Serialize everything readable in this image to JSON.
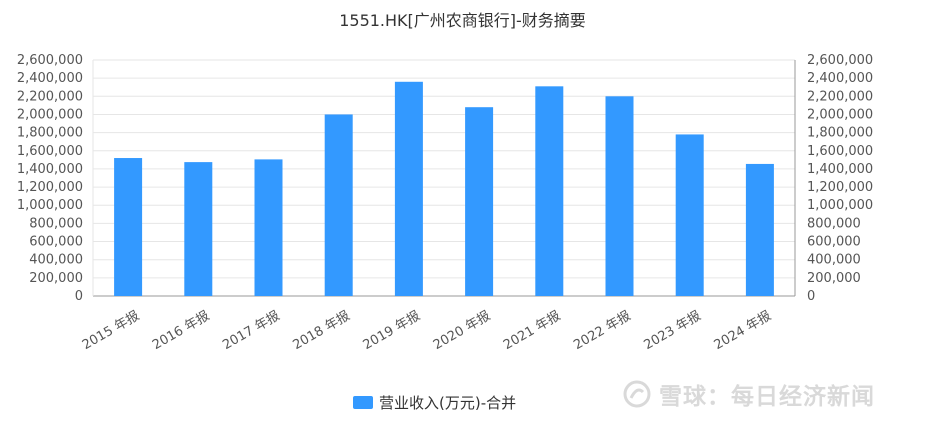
{
  "chart_data": {
    "type": "bar",
    "title": "1551.HK[广州农商银行]-财务摘要",
    "categories": [
      "2015 年报",
      "2016 年报",
      "2017 年报",
      "2018 年报",
      "2019 年报",
      "2020 年报",
      "2021 年报",
      "2022 年报",
      "2023 年报",
      "2024 年报"
    ],
    "series": [
      {
        "name": "营业收入(万元)-合并",
        "values": [
          1520000,
          1475000,
          1505000,
          2000000,
          2360000,
          2080000,
          2310000,
          2200000,
          1780000,
          1455000
        ]
      }
    ],
    "yticks": [
      "0",
      "200,000",
      "400,000",
      "600,000",
      "800,000",
      "1,000,000",
      "1,200,000",
      "1,400,000",
      "1,600,000",
      "1,800,000",
      "2,000,000",
      "2,200,000",
      "2,400,000",
      "2,600,000"
    ],
    "ylim": [
      0,
      2600000
    ],
    "grid": true,
    "legend_position": "bottom",
    "colors": {
      "bar": "#3399ff",
      "grid": "#e6e6e6",
      "axis": "#999999"
    }
  },
  "watermark": {
    "text": "雪球：每日经济新闻"
  }
}
